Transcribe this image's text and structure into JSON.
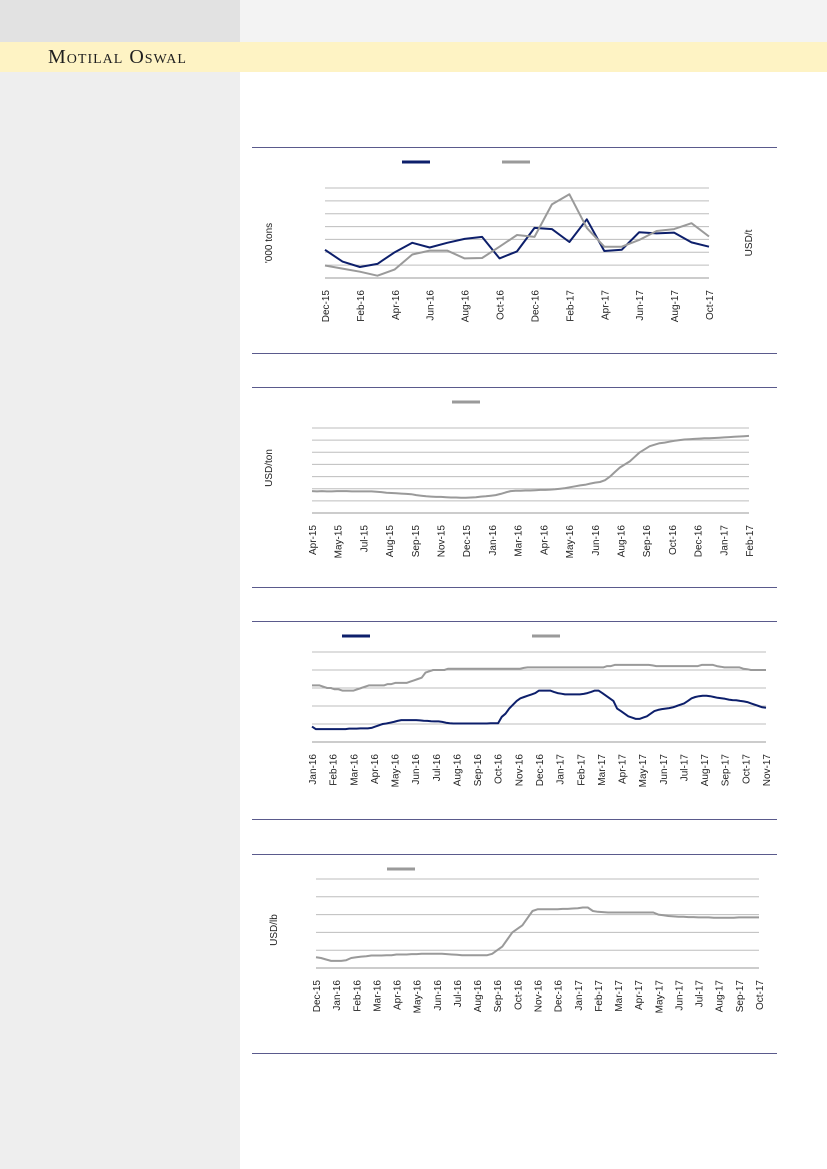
{
  "header": {
    "brand": "Motilal Oswal"
  },
  "colors": {
    "navy": "#0d1f6b",
    "grey": "#9a9a9a",
    "band": "#fef3c4",
    "rule": "#5a5a8c"
  },
  "chart_data": [
    {
      "type": "line",
      "ylabel_left": "'000 tons",
      "ylabel_right": "USD/t",
      "x": [
        "Dec-15",
        "Jan-16",
        "Feb-16",
        "Mar-16",
        "Apr-16",
        "May-16",
        "Jun-16",
        "Jul-16",
        "Aug-16",
        "Sep-16",
        "Oct-16",
        "Nov-16",
        "Dec-16",
        "Jan-17",
        "Feb-17",
        "Mar-17",
        "Apr-17",
        "May-17",
        "Jun-17",
        "Jul-17",
        "Aug-17",
        "Sep-17",
        "Oct-17"
      ],
      "x_tick_labels": [
        "Dec-15",
        "Feb-16",
        "Apr-16",
        "Jun-16",
        "Aug-16",
        "Oct-16",
        "Dec-16",
        "Feb-17",
        "Apr-17",
        "Jun-17",
        "Aug-17",
        "Oct-17"
      ],
      "grid": true,
      "series": [
        {
          "color": "#0d1f6b",
          "values": [
            62,
            32,
            18,
            26,
            56,
            80,
            68,
            80,
            90,
            95,
            40,
            58,
            118,
            115,
            82,
            140,
            59,
            62,
            107,
            104,
            106,
            81,
            70
          ]
        },
        {
          "color": "#9a9a9a",
          "values": [
            22,
            14,
            6,
            -4,
            12,
            50,
            60,
            60,
            40,
            41,
            70,
            100,
            95,
            178,
            204,
            118,
            70,
            70,
            87,
            110,
            115,
            130,
            96
          ]
        }
      ],
      "ylim": [
        -10,
        220
      ]
    },
    {
      "type": "line",
      "ylabel": "USD/ton",
      "x_tick_labels": [
        "Apr-15",
        "May-15",
        "Jul-15",
        "Aug-15",
        "Sep-15",
        "Nov-15",
        "Dec-15",
        "Jan-16",
        "Mar-16",
        "Apr-16",
        "May-16",
        "Jun-16",
        "Aug-16",
        "Sep-16",
        "Oct-16",
        "Dec-16",
        "Jan-17",
        "Feb-17"
      ],
      "grid": true,
      "series": [
        {
          "color": "#9a9a9a",
          "values": [
            112,
            111,
            112,
            111,
            111,
            112,
            112,
            112,
            111,
            111,
            111,
            111,
            111,
            110,
            109,
            107,
            106,
            105,
            104,
            103,
            102,
            99,
            97,
            95,
            94,
            93,
            93,
            92,
            91,
            91,
            90,
            90,
            91,
            92,
            94,
            95,
            97,
            99,
            103,
            108,
            112,
            113,
            113,
            114,
            114,
            115,
            116,
            116,
            117,
            118,
            120,
            122,
            125,
            128,
            131,
            133,
            137,
            140,
            142,
            148,
            160,
            175,
            190,
            200,
            210,
            225,
            240,
            250,
            260,
            265,
            270,
            272,
            275,
            278,
            280,
            282,
            283,
            284,
            285,
            286,
            286,
            287,
            288,
            289,
            290,
            291,
            292,
            293,
            294
          ]
        }
      ],
      "ylim": [
        40,
        320
      ]
    },
    {
      "type": "line",
      "x_tick_labels": [
        "Jan-16",
        "Feb-16",
        "Mar-16",
        "Apr-16",
        "May-16",
        "Jun-16",
        "Jul-16",
        "Aug-16",
        "Sep-16",
        "Oct-16",
        "Nov-16",
        "Dec-16",
        "Jan-17",
        "Feb-17",
        "Mar-17",
        "Apr-17",
        "May-17",
        "Jun-17",
        "Jul-17",
        "Aug-17",
        "Sep-17",
        "Oct-17",
        "Nov-17"
      ],
      "grid": true,
      "series": [
        {
          "color": "#0d1f6b",
          "values": [
            6,
            5,
            5,
            5,
            5,
            5,
            5,
            5,
            5,
            5,
            5.2,
            5.2,
            5.2,
            5.3,
            5.3,
            5.3,
            5.5,
            6,
            6.5,
            7,
            7.2,
            7.5,
            7.8,
            8.2,
            8.5,
            8.5,
            8.5,
            8.5,
            8.5,
            8.4,
            8.3,
            8.2,
            8.1,
            8,
            8,
            7.8,
            7.5,
            7.3,
            7.2,
            7.2,
            7.2,
            7.2,
            7.2,
            7.2,
            7.2,
            7.2,
            7.2,
            7.2,
            7.3,
            7.3,
            7.3,
            9.8,
            11,
            13,
            14.5,
            16,
            17,
            17.5,
            18,
            18.5,
            19,
            20,
            20,
            20,
            20,
            19.5,
            19,
            18.8,
            18.5,
            18.5,
            18.5,
            18.5,
            18.5,
            18.7,
            19,
            19.5,
            20,
            20,
            19,
            18,
            17,
            16,
            13,
            12,
            11,
            10,
            9.5,
            9,
            9,
            9.5,
            10,
            11,
            12,
            12.5,
            12.8,
            13,
            13.2,
            13.5,
            14,
            14.5,
            15,
            16,
            17,
            17.5,
            17.8,
            18,
            18,
            17.8,
            17.5,
            17.2,
            17,
            16.8,
            16.5,
            16.3,
            16.2,
            16,
            15.8,
            15.5,
            15,
            14.5,
            14,
            13.5,
            13.3
          ]
        },
        {
          "color": "#9a9a9a",
          "values": [
            22,
            22,
            22,
            21.5,
            21,
            21,
            20.5,
            20.5,
            20,
            20,
            20,
            20,
            20.5,
            21,
            21.5,
            22,
            22,
            22,
            22,
            22,
            22.5,
            22.5,
            23,
            23,
            23,
            23,
            23.5,
            24,
            24.5,
            25,
            27,
            27.5,
            28,
            28,
            28,
            28,
            28.5,
            28.5,
            28.5,
            28.5,
            28.5,
            28.5,
            28.5,
            28.5,
            28.5,
            28.5,
            28.5,
            28.5,
            28.5,
            28.5,
            28.5,
            28.5,
            28.5,
            28.5,
            28.5,
            28.5,
            28.8,
            29,
            29,
            29,
            29,
            29,
            29,
            29,
            29,
            29,
            29,
            29,
            29,
            29,
            29,
            29,
            29,
            29,
            29,
            29,
            29,
            29,
            29.5,
            29.5,
            30,
            30,
            30,
            30,
            30,
            30,
            30,
            30,
            30,
            30,
            29.8,
            29.5,
            29.5,
            29.5,
            29.5,
            29.5,
            29.5,
            29.5,
            29.5,
            29.5,
            29.5,
            29.5,
            29.5,
            30,
            30,
            30,
            30,
            29.5,
            29.3,
            29,
            29,
            29,
            29,
            29,
            28.5,
            28.3,
            28,
            28,
            28,
            28,
            28
          ]
        }
      ],
      "ylim": [
        0,
        35
      ]
    },
    {
      "type": "line",
      "ylabel": "USD/lb",
      "x_tick_labels": [
        "Dec-15",
        "Jan-16",
        "Feb-16",
        "Mar-16",
        "Apr-16",
        "May-16",
        "Jun-16",
        "Jul-16",
        "Aug-16",
        "Sep-16",
        "Oct-16",
        "Nov-16",
        "Dec-16",
        "Jan-17",
        "Feb-17",
        "Mar-17",
        "Apr-17",
        "May-17",
        "Jun-17",
        "Jul-17",
        "Aug-17",
        "Sep-17",
        "Oct-17"
      ],
      "grid": true,
      "series": [
        {
          "color": "#9a9a9a",
          "values": [
            0.3,
            0.28,
            0.24,
            0.2,
            0.2,
            0.2,
            0.22,
            0.28,
            0.3,
            0.32,
            0.33,
            0.35,
            0.35,
            0.35,
            0.36,
            0.36,
            0.38,
            0.38,
            0.38,
            0.39,
            0.39,
            0.4,
            0.4,
            0.4,
            0.4,
            0.4,
            0.39,
            0.38,
            0.37,
            0.36,
            0.36,
            0.36,
            0.36,
            0.36,
            0.36,
            0.4,
            0.5,
            0.6,
            0.8,
            1.0,
            1.1,
            1.2,
            1.4,
            1.6,
            1.65,
            1.65,
            1.65,
            1.65,
            1.65,
            1.66,
            1.66,
            1.67,
            1.68,
            1.7,
            1.7,
            1.6,
            1.58,
            1.57,
            1.56,
            1.56,
            1.56,
            1.56,
            1.56,
            1.56,
            1.56,
            1.56,
            1.56,
            1.56,
            1.5,
            1.48,
            1.46,
            1.45,
            1.44,
            1.44,
            1.43,
            1.43,
            1.42,
            1.42,
            1.42,
            1.41,
            1.41,
            1.41,
            1.41,
            1.41,
            1.42,
            1.42,
            1.42,
            1.42,
            1.42
          ]
        }
      ],
      "ylim": [
        0,
        2.5
      ]
    }
  ]
}
